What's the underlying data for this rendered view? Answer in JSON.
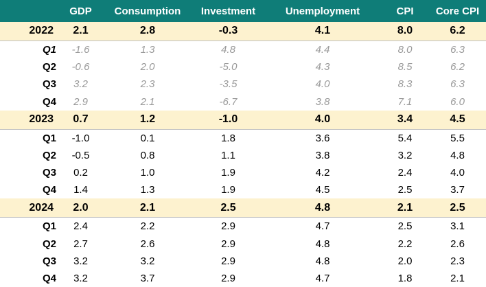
{
  "colors": {
    "header_bg": "#0f7d78",
    "header_text": "#ffffff",
    "year_row_bg": "#fdf2cf",
    "year_row_border": "#c0c0c0",
    "muted_quarter_text": "#999999",
    "body_text": "#000000"
  },
  "table": {
    "corner_label": "",
    "headers": [
      "GDP",
      "Consumption",
      "Investment",
      "Unemployment",
      "CPI",
      "Core CPI"
    ],
    "rows": [
      {
        "label": "2022",
        "kind": "year",
        "values": [
          "2.1",
          "2.8",
          "-0.3",
          "4.1",
          "8.0",
          "6.2"
        ]
      },
      {
        "label": "Q1",
        "kind": "quarter",
        "muted": true,
        "label_italic": true,
        "values": [
          "-1.6",
          "1.3",
          "4.8",
          "4.4",
          "8.0",
          "6.3"
        ]
      },
      {
        "label": "Q2",
        "kind": "quarter",
        "muted": true,
        "values": [
          "-0.6",
          "2.0",
          "-5.0",
          "4.3",
          "8.5",
          "6.2"
        ]
      },
      {
        "label": "Q3",
        "kind": "quarter",
        "muted": true,
        "values": [
          "3.2",
          "2.3",
          "-3.5",
          "4.0",
          "8.3",
          "6.3"
        ]
      },
      {
        "label": "Q4",
        "kind": "quarter",
        "muted": true,
        "values": [
          "2.9",
          "2.1",
          "-6.7",
          "3.8",
          "7.1",
          "6.0"
        ]
      },
      {
        "label": "2023",
        "kind": "year",
        "values": [
          "0.7",
          "1.2",
          "-1.0",
          "4.0",
          "3.4",
          "4.5"
        ]
      },
      {
        "label": "Q1",
        "kind": "quarter",
        "values": [
          "-1.0",
          "0.1",
          "1.8",
          "3.6",
          "5.4",
          "5.5"
        ]
      },
      {
        "label": "Q2",
        "kind": "quarter",
        "values": [
          "-0.5",
          "0.8",
          "1.1",
          "3.8",
          "3.2",
          "4.8"
        ]
      },
      {
        "label": "Q3",
        "kind": "quarter",
        "values": [
          "0.2",
          "1.0",
          "1.9",
          "4.2",
          "2.4",
          "4.0"
        ]
      },
      {
        "label": "Q4",
        "kind": "quarter",
        "values": [
          "1.4",
          "1.3",
          "1.9",
          "4.5",
          "2.5",
          "3.7"
        ]
      },
      {
        "label": "2024",
        "kind": "year",
        "values": [
          "2.0",
          "2.1",
          "2.5",
          "4.8",
          "2.1",
          "2.5"
        ]
      },
      {
        "label": "Q1",
        "kind": "quarter",
        "values": [
          "2.4",
          "2.2",
          "2.9",
          "4.7",
          "2.5",
          "3.1"
        ]
      },
      {
        "label": "Q2",
        "kind": "quarter",
        "values": [
          "2.7",
          "2.6",
          "2.9",
          "4.8",
          "2.2",
          "2.6"
        ]
      },
      {
        "label": "Q3",
        "kind": "quarter",
        "values": [
          "3.2",
          "3.2",
          "2.9",
          "4.8",
          "2.0",
          "2.3"
        ]
      },
      {
        "label": "Q4",
        "kind": "quarter",
        "values": [
          "3.2",
          "3.7",
          "2.9",
          "4.7",
          "1.8",
          "2.1"
        ]
      }
    ]
  },
  "chart_data": {
    "type": "table",
    "columns": [
      "",
      "GDP",
      "Consumption",
      "Investment",
      "Unemployment",
      "CPI",
      "Core CPI"
    ],
    "rows": [
      {
        "period": "2022",
        "level": "year",
        "gdp": 2.1,
        "consumption": 2.8,
        "investment": -0.3,
        "unemployment": 4.1,
        "cpi": 8.0,
        "core_cpi": 6.2
      },
      {
        "period": "2022 Q1",
        "level": "quarter",
        "gdp": -1.6,
        "consumption": 1.3,
        "investment": 4.8,
        "unemployment": 4.4,
        "cpi": 8.0,
        "core_cpi": 6.3
      },
      {
        "period": "2022 Q2",
        "level": "quarter",
        "gdp": -0.6,
        "consumption": 2.0,
        "investment": -5.0,
        "unemployment": 4.3,
        "cpi": 8.5,
        "core_cpi": 6.2
      },
      {
        "period": "2022 Q3",
        "level": "quarter",
        "gdp": 3.2,
        "consumption": 2.3,
        "investment": -3.5,
        "unemployment": 4.0,
        "cpi": 8.3,
        "core_cpi": 6.3
      },
      {
        "period": "2022 Q4",
        "level": "quarter",
        "gdp": 2.9,
        "consumption": 2.1,
        "investment": -6.7,
        "unemployment": 3.8,
        "cpi": 7.1,
        "core_cpi": 6.0
      },
      {
        "period": "2023",
        "level": "year",
        "gdp": 0.7,
        "consumption": 1.2,
        "investment": -1.0,
        "unemployment": 4.0,
        "cpi": 3.4,
        "core_cpi": 4.5
      },
      {
        "period": "2023 Q1",
        "level": "quarter",
        "gdp": -1.0,
        "consumption": 0.1,
        "investment": 1.8,
        "unemployment": 3.6,
        "cpi": 5.4,
        "core_cpi": 5.5
      },
      {
        "period": "2023 Q2",
        "level": "quarter",
        "gdp": -0.5,
        "consumption": 0.8,
        "investment": 1.1,
        "unemployment": 3.8,
        "cpi": 3.2,
        "core_cpi": 4.8
      },
      {
        "period": "2023 Q3",
        "level": "quarter",
        "gdp": 0.2,
        "consumption": 1.0,
        "investment": 1.9,
        "unemployment": 4.2,
        "cpi": 2.4,
        "core_cpi": 4.0
      },
      {
        "period": "2023 Q4",
        "level": "quarter",
        "gdp": 1.4,
        "consumption": 1.3,
        "investment": 1.9,
        "unemployment": 4.5,
        "cpi": 2.5,
        "core_cpi": 3.7
      },
      {
        "period": "2024",
        "level": "year",
        "gdp": 2.0,
        "consumption": 2.1,
        "investment": 2.5,
        "unemployment": 4.8,
        "cpi": 2.1,
        "core_cpi": 2.5
      },
      {
        "period": "2024 Q1",
        "level": "quarter",
        "gdp": 2.4,
        "consumption": 2.2,
        "investment": 2.9,
        "unemployment": 4.7,
        "cpi": 2.5,
        "core_cpi": 3.1
      },
      {
        "period": "2024 Q2",
        "level": "quarter",
        "gdp": 2.7,
        "consumption": 2.6,
        "investment": 2.9,
        "unemployment": 4.8,
        "cpi": 2.2,
        "core_cpi": 2.6
      },
      {
        "period": "2024 Q3",
        "level": "quarter",
        "gdp": 3.2,
        "consumption": 3.2,
        "investment": 2.9,
        "unemployment": 4.8,
        "cpi": 2.0,
        "core_cpi": 2.3
      },
      {
        "period": "2024 Q4",
        "level": "quarter",
        "gdp": 3.2,
        "consumption": 3.7,
        "investment": 2.9,
        "unemployment": 4.7,
        "cpi": 1.8,
        "core_cpi": 2.1
      }
    ],
    "notes": "Annual rows are bold on cream background; 2022 quarterly rows are shown in italic gray (historical/estimate styling); 2023-2024 quarterly rows in plain black."
  }
}
